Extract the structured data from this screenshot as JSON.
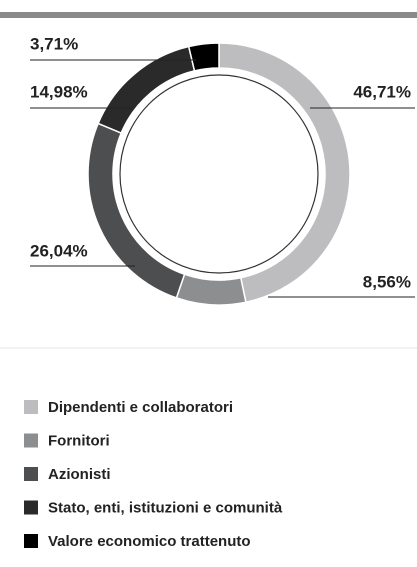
{
  "chart_data": {
    "type": "donut",
    "categories": [
      "Dipendenti e collaboratori",
      "Fornitori",
      "Azionisti",
      "Stato, enti, istituzioni e comunità",
      "Valore economico trattenuto"
    ],
    "values": [
      46.71,
      8.56,
      26.04,
      14.98,
      3.71
    ],
    "value_labels": [
      "46,71%",
      "8,56%",
      "26,04%",
      "14,98%",
      "3,71%"
    ],
    "colors": [
      "#bdbdbf",
      "#8d8e90",
      "#4d4e50",
      "#2a2a2b",
      "#000000"
    ],
    "legend": "bottom"
  }
}
